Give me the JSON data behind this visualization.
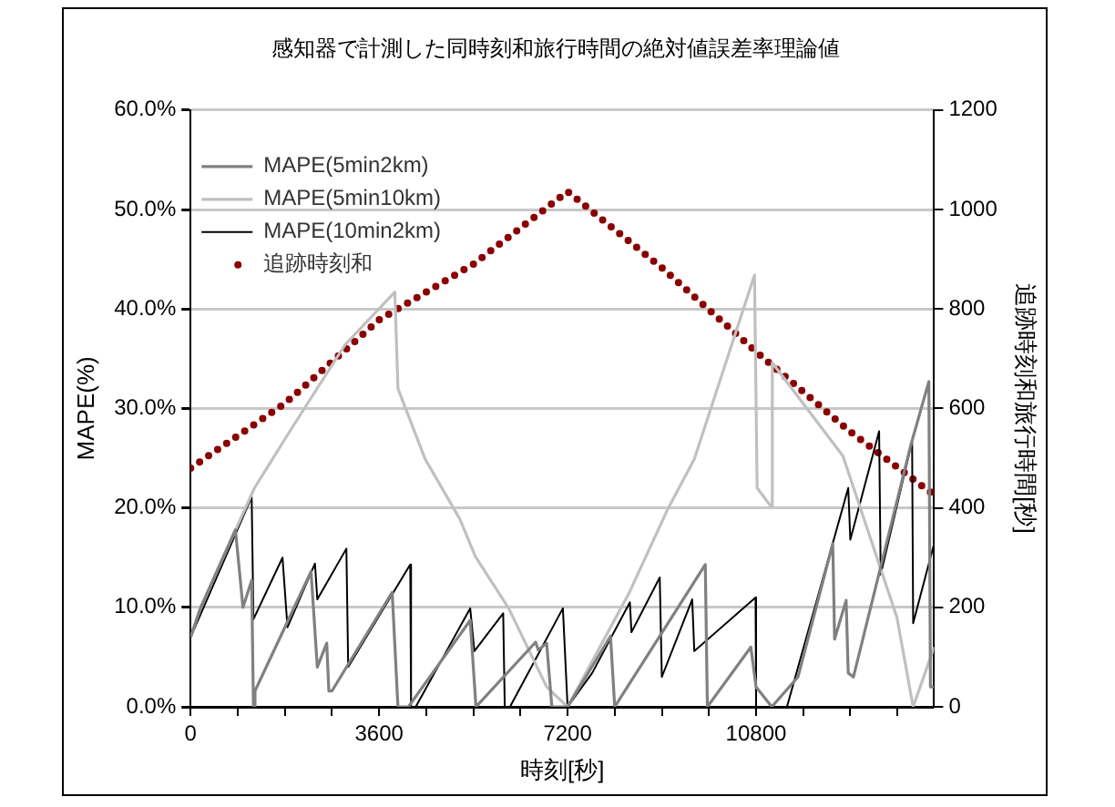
{
  "chart_data": {
    "type": "line",
    "title": "感知器で計測した同時刻和旅行時間の絶対値誤差率理論値",
    "xlabel": "時刻[秒]",
    "ylabel": "MAPE(%)",
    "y2label": "追跡時刻和旅行時間[秒]",
    "xlim": [
      0,
      14200
    ],
    "xticks": [
      0,
      {
        "value": 900,
        "label": null
      },
      {
        "value": 1800,
        "label": null
      },
      {
        "value": 2700,
        "label": null
      },
      3600,
      {
        "value": 4500,
        "label": null
      },
      {
        "value": 5400,
        "label": null
      },
      {
        "value": 6300,
        "label": null
      },
      7200,
      {
        "value": 8100,
        "label": null
      },
      {
        "value": 9000,
        "label": null
      },
      {
        "value": 9900,
        "label": null
      },
      10800,
      {
        "value": 11700,
        "label": null
      },
      {
        "value": 12600,
        "label": null
      },
      {
        "value": 13500,
        "label": null
      }
    ],
    "ylim": [
      0,
      60
    ],
    "yticks": [
      {
        "value": 0,
        "label": "0.0%"
      },
      {
        "value": 10,
        "label": "10.0%"
      },
      {
        "value": 20,
        "label": "20.0%"
      },
      {
        "value": 30,
        "label": "30.0%"
      },
      {
        "value": 40,
        "label": "40.0%"
      },
      {
        "value": 50,
        "label": "50.0%"
      },
      {
        "value": 60,
        "label": "60.0%"
      }
    ],
    "y2lim": [
      0,
      1200
    ],
    "y2ticks": [
      0,
      200,
      400,
      600,
      800,
      1000,
      1200
    ],
    "grid": "y",
    "legend": "top left",
    "marker": "none",
    "series": [
      {
        "name": "MAPE(5min2km)",
        "color": "#808080",
        "line_style": "solid",
        "x": [
          0,
          186,
          856,
          1000,
          1166,
          1200,
          1230,
          2300,
          2420,
          2600,
          2640,
          2700,
          3850,
          3960,
          4160,
          5340,
          5450,
          6590,
          6640,
          6800,
          6900,
          7200,
          8020,
          8100,
          9830,
          9870,
          10700,
          10800,
          11100,
          11600,
          12265,
          12300,
          12520,
          12560,
          12660,
          13760,
          14100,
          14130,
          14200
        ],
        "values": [
          7,
          9.9,
          17.8,
          10,
          12.7,
          0,
          1.6,
          13.6,
          4,
          6.4,
          1.6,
          1.6,
          11.5,
          0,
          0,
          8.7,
          0,
          6.5,
          5.7,
          6.4,
          0,
          0,
          7.1,
          0,
          14.3,
          0,
          6,
          2,
          0,
          3,
          16.4,
          6.8,
          10.7,
          3.4,
          3,
          26.4,
          32.7,
          2,
          2
        ]
      },
      {
        "name": "MAPE(5min10km)",
        "color": "#c0c0c0",
        "line_style": "solid",
        "x": [
          0,
          186,
          1220,
          1930,
          2950,
          3900,
          3960,
          4480,
          5140,
          5440,
          6075,
          6800,
          7200,
          8380,
          9115,
          9620,
          10770,
          10820,
          11080,
          11110,
          12460,
          13490,
          13800,
          14200
        ],
        "values": [
          7,
          9.9,
          22,
          28,
          36.4,
          41.7,
          32,
          24.9,
          18.9,
          15.1,
          9.9,
          2,
          0,
          11.5,
          19.9,
          24.9,
          43.4,
          22,
          20.2,
          34.6,
          25.2,
          9,
          0,
          6
        ]
      },
      {
        "name": "MAPE(10min2km)",
        "color": "#000000",
        "line_style": "solid",
        "x": [
          0,
          1166,
          1200,
          1755,
          1850,
          2375,
          2420,
          2975,
          3010,
          4195,
          4210,
          4300,
          5340,
          5420,
          5970,
          6000,
          6100,
          7110,
          7200,
          7670,
          8390,
          8420,
          8960,
          9000,
          9580,
          9620,
          10790,
          10800,
          11390,
          12560,
          12600,
          13150,
          13180,
          13780,
          13800,
          14200
        ],
        "values": [
          7,
          21.1,
          8.8,
          15,
          8,
          14.4,
          10.8,
          15.9,
          4,
          14.3,
          0,
          0,
          9.9,
          5.6,
          9.4,
          0,
          0,
          9.9,
          0,
          3.4,
          10.5,
          7.5,
          13,
          3,
          10.8,
          5.6,
          11,
          0,
          0,
          22,
          16.8,
          27.7,
          13.3,
          26.7,
          8.4,
          16.4
        ]
      },
      {
        "name": "追跡時刻和",
        "color": "#8b0000",
        "line_style": "dotted",
        "axis": "y2",
        "x": [
          0,
          1800,
          3600,
          5400,
          7200,
          9000,
          10800,
          12600,
          14200
        ],
        "values": [
          480,
          610,
          778,
          890,
          1036,
          883,
          714,
          553,
          426
        ]
      }
    ]
  }
}
